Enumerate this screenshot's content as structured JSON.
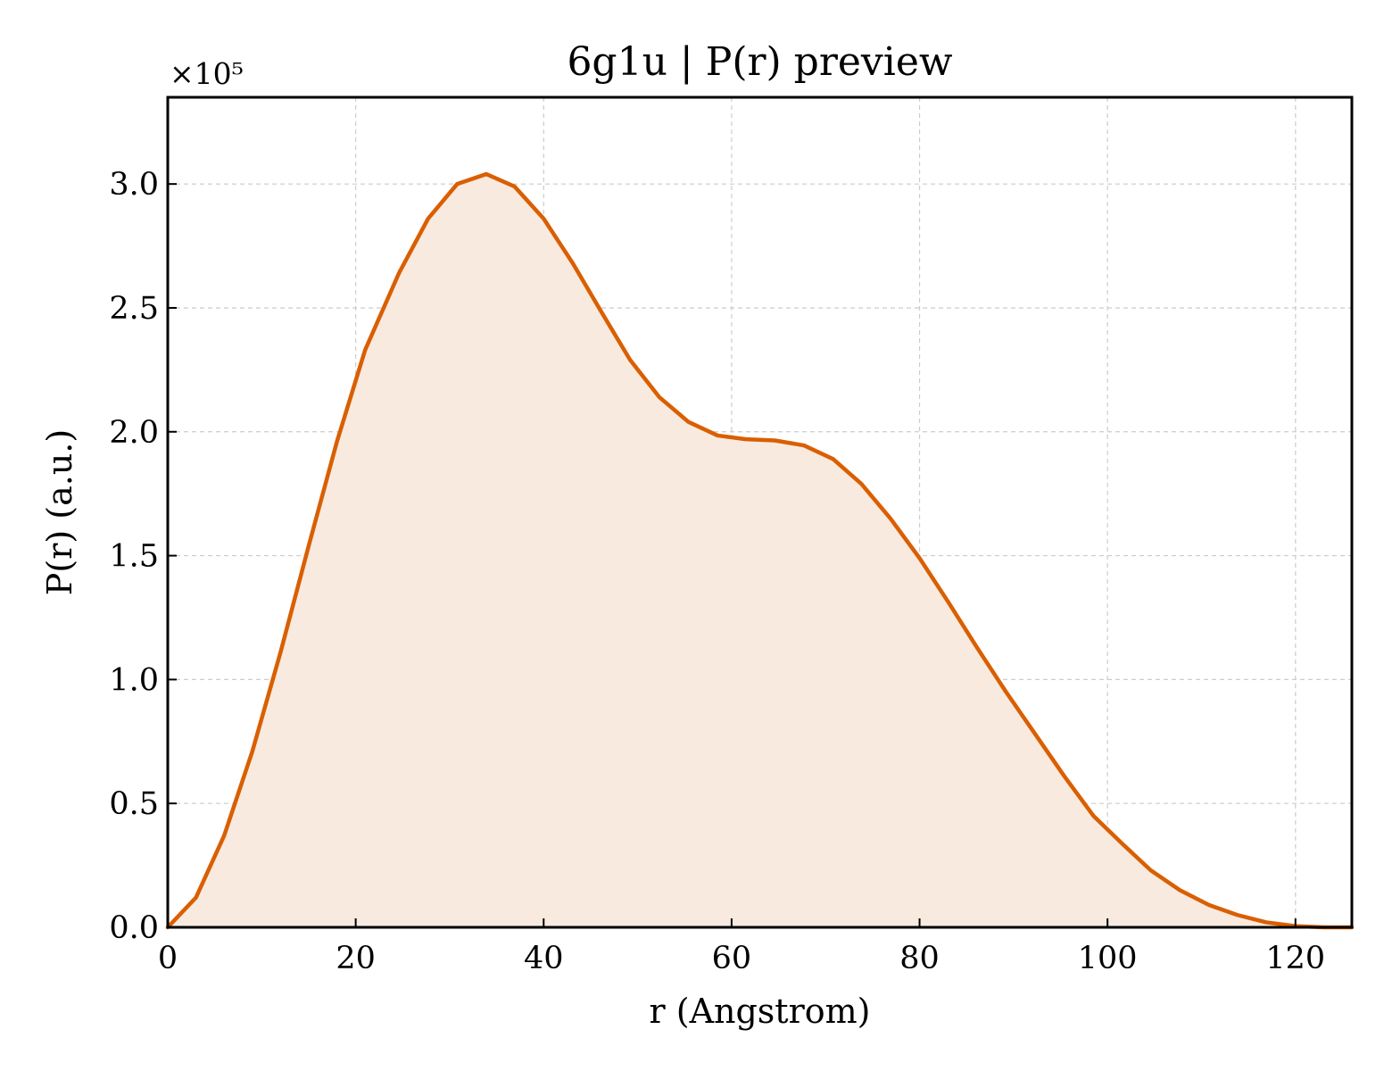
{
  "chart_data": {
    "type": "area",
    "title": "6g1u | P(r) preview",
    "xlabel": "r (Angstrom)",
    "ylabel": "P(r) (a.u.)",
    "y_offset_label": "×10⁵",
    "xlim": [
      0,
      126
    ],
    "ylim": [
      0,
      3.35
    ],
    "y_scale_factor": 100000,
    "x_ticks": [
      0,
      20,
      40,
      60,
      80,
      100,
      120
    ],
    "x_tick_labels": [
      "0",
      "20",
      "40",
      "60",
      "80",
      "100",
      "120"
    ],
    "y_ticks": [
      0,
      0.5,
      1.0,
      1.5,
      2.0,
      2.5,
      3.0
    ],
    "y_tick_labels": [
      "0.0",
      "0.5",
      "1.0",
      "1.5",
      "2.0",
      "2.5",
      "3.0"
    ],
    "grid": true,
    "line_color": "#d95f02",
    "fill_color": "#f8eadf",
    "series": [
      {
        "x": [
          0,
          3,
          6,
          9,
          12,
          15,
          18,
          21,
          24.6,
          27.7,
          30.8,
          33.9,
          36.9,
          40,
          43.1,
          46.2,
          49.2,
          52.3,
          55.4,
          58.5,
          61.5,
          64.6,
          67.7,
          70.8,
          73.8,
          76.9,
          80,
          83.1,
          86.1,
          89.2,
          92.3,
          95.4,
          98.5,
          101.5,
          104.6,
          107.7,
          110.8,
          113.8,
          116.9,
          120,
          123,
          126
        ],
        "y": [
          0,
          0.12,
          0.37,
          0.71,
          1.11,
          1.54,
          1.96,
          2.33,
          2.64,
          2.86,
          3.0,
          3.04,
          2.99,
          2.86,
          2.68,
          2.48,
          2.29,
          2.14,
          2.04,
          1.985,
          1.97,
          1.965,
          1.945,
          1.89,
          1.79,
          1.65,
          1.49,
          1.31,
          1.13,
          0.95,
          0.78,
          0.61,
          0.45,
          0.34,
          0.23,
          0.15,
          0.09,
          0.05,
          0.02,
          0.005,
          0,
          0
        ]
      }
    ]
  }
}
